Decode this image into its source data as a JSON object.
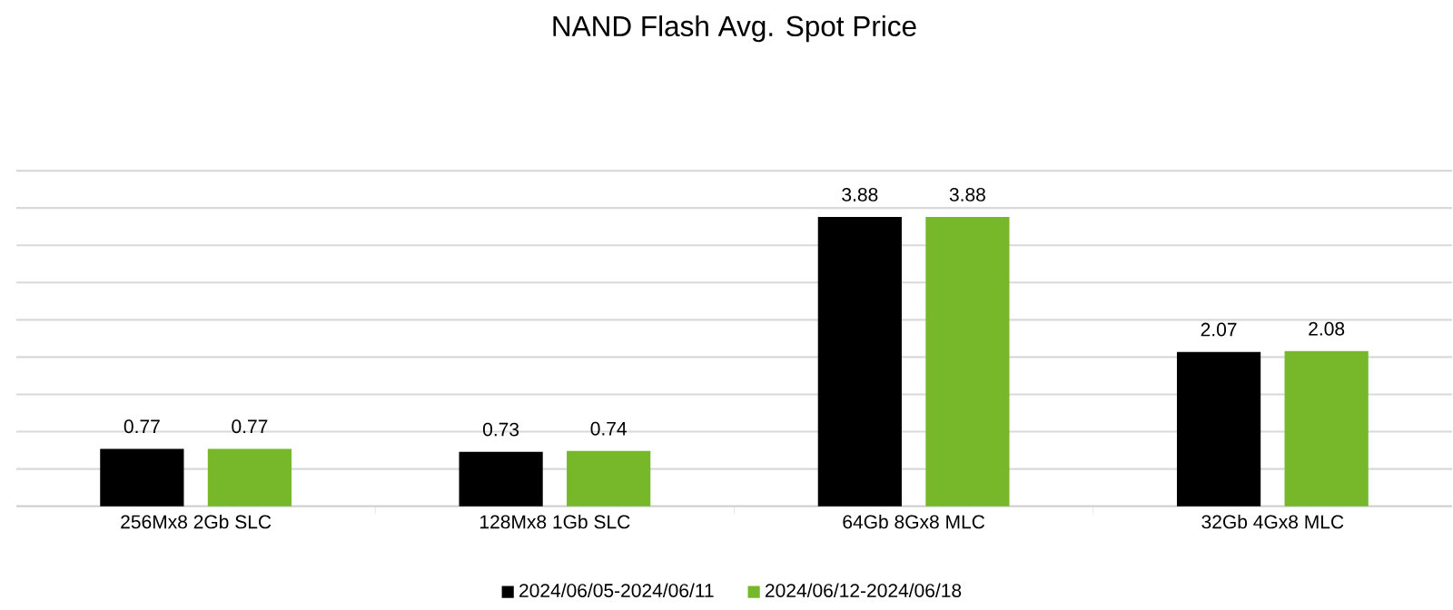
{
  "chart_data": {
    "type": "bar",
    "title": "NAND Flash Avg. Spot Price",
    "categories": [
      "256Mx8 2Gb SLC",
      "128Mx8 1Gb SLC",
      "64Gb 8Gx8 MLC",
      "32Gb 4Gx8 MLC"
    ],
    "series": [
      {
        "name": "2024/06/05-2024/06/11",
        "color": "#000000",
        "values": [
          0.77,
          0.73,
          3.88,
          2.07
        ]
      },
      {
        "name": "2024/06/12-2024/06/18",
        "color": "#76b82a",
        "values": [
          0.77,
          0.74,
          3.88,
          2.08
        ]
      }
    ],
    "tick_labels": "x",
    "grid": "y",
    "legend": "bottom",
    "data_labels": true
  }
}
